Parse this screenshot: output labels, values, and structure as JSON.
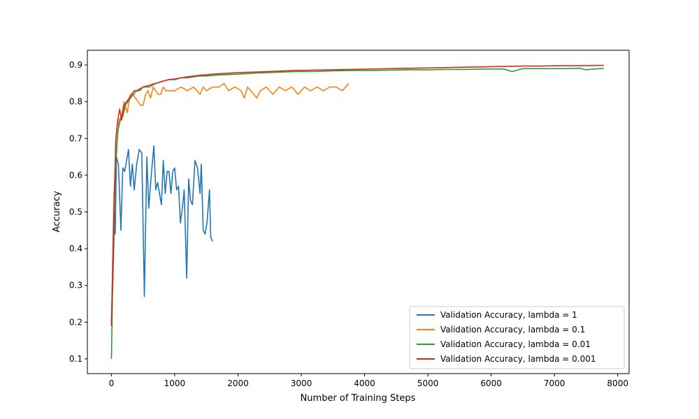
{
  "chart_data": {
    "type": "line",
    "title": "",
    "xlabel": "Number of Training Steps",
    "ylabel": "Accuracy",
    "xlim": [
      -380,
      8180
    ],
    "ylim": [
      0.06,
      0.94
    ],
    "xticks": [
      0,
      1000,
      2000,
      3000,
      4000,
      5000,
      6000,
      7000,
      8000
    ],
    "yticks": [
      0.1,
      0.2,
      0.3,
      0.4,
      0.5,
      0.6,
      0.7,
      0.8,
      0.9
    ],
    "grid": false,
    "legend_position": "lower-right",
    "series": [
      {
        "name": "Validation Accuracy, lambda = 1",
        "color": "#1f77b4",
        "points": [
          [
            0,
            0.19
          ],
          [
            30,
            0.35
          ],
          [
            50,
            0.5
          ],
          [
            60,
            0.44
          ],
          [
            80,
            0.65
          ],
          [
            110,
            0.63
          ],
          [
            150,
            0.45
          ],
          [
            180,
            0.62
          ],
          [
            210,
            0.61
          ],
          [
            240,
            0.64
          ],
          [
            270,
            0.67
          ],
          [
            300,
            0.57
          ],
          [
            330,
            0.63
          ],
          [
            360,
            0.56
          ],
          [
            400,
            0.63
          ],
          [
            440,
            0.67
          ],
          [
            480,
            0.66
          ],
          [
            520,
            0.27
          ],
          [
            560,
            0.65
          ],
          [
            590,
            0.51
          ],
          [
            630,
            0.6
          ],
          [
            670,
            0.68
          ],
          [
            700,
            0.56
          ],
          [
            730,
            0.58
          ],
          [
            760,
            0.55
          ],
          [
            790,
            0.52
          ],
          [
            820,
            0.64
          ],
          [
            850,
            0.55
          ],
          [
            880,
            0.61
          ],
          [
            910,
            0.61
          ],
          [
            940,
            0.55
          ],
          [
            970,
            0.61
          ],
          [
            1000,
            0.62
          ],
          [
            1030,
            0.56
          ],
          [
            1060,
            0.57
          ],
          [
            1090,
            0.47
          ],
          [
            1120,
            0.51
          ],
          [
            1150,
            0.56
          ],
          [
            1190,
            0.32
          ],
          [
            1220,
            0.59
          ],
          [
            1250,
            0.53
          ],
          [
            1280,
            0.52
          ],
          [
            1320,
            0.64
          ],
          [
            1360,
            0.62
          ],
          [
            1400,
            0.55
          ],
          [
            1420,
            0.63
          ],
          [
            1450,
            0.45
          ],
          [
            1480,
            0.44
          ],
          [
            1510,
            0.47
          ],
          [
            1550,
            0.56
          ],
          [
            1570,
            0.43
          ],
          [
            1600,
            0.42
          ]
        ]
      },
      {
        "name": "Validation Accuracy, lambda = 0.1",
        "color": "#ff7f0e",
        "points": [
          [
            0,
            0.19
          ],
          [
            40,
            0.55
          ],
          [
            80,
            0.67
          ],
          [
            120,
            0.75
          ],
          [
            160,
            0.76
          ],
          [
            200,
            0.8
          ],
          [
            250,
            0.77
          ],
          [
            300,
            0.82
          ],
          [
            340,
            0.82
          ],
          [
            380,
            0.81
          ],
          [
            420,
            0.8
          ],
          [
            460,
            0.79
          ],
          [
            500,
            0.79
          ],
          [
            540,
            0.82
          ],
          [
            580,
            0.83
          ],
          [
            620,
            0.81
          ],
          [
            660,
            0.84
          ],
          [
            700,
            0.83
          ],
          [
            740,
            0.82
          ],
          [
            780,
            0.82
          ],
          [
            820,
            0.84
          ],
          [
            860,
            0.83
          ],
          [
            900,
            0.83
          ],
          [
            1000,
            0.83
          ],
          [
            1100,
            0.84
          ],
          [
            1200,
            0.83
          ],
          [
            1300,
            0.84
          ],
          [
            1350,
            0.83
          ],
          [
            1400,
            0.82
          ],
          [
            1450,
            0.84
          ],
          [
            1500,
            0.83
          ],
          [
            1600,
            0.84
          ],
          [
            1700,
            0.84
          ],
          [
            1780,
            0.85
          ],
          [
            1850,
            0.83
          ],
          [
            1950,
            0.84
          ],
          [
            2050,
            0.83
          ],
          [
            2100,
            0.81
          ],
          [
            2150,
            0.84
          ],
          [
            2200,
            0.83
          ],
          [
            2300,
            0.81
          ],
          [
            2350,
            0.83
          ],
          [
            2450,
            0.84
          ],
          [
            2550,
            0.82
          ],
          [
            2650,
            0.84
          ],
          [
            2750,
            0.83
          ],
          [
            2850,
            0.84
          ],
          [
            2950,
            0.82
          ],
          [
            3050,
            0.84
          ],
          [
            3150,
            0.83
          ],
          [
            3250,
            0.84
          ],
          [
            3350,
            0.83
          ],
          [
            3450,
            0.84
          ],
          [
            3550,
            0.84
          ],
          [
            3650,
            0.83
          ],
          [
            3750,
            0.85
          ]
        ]
      },
      {
        "name": "Validation Accuracy, lambda = 0.01",
        "color": "#2ca02c",
        "points": [
          [
            0,
            0.1
          ],
          [
            30,
            0.4
          ],
          [
            60,
            0.6
          ],
          [
            100,
            0.72
          ],
          [
            140,
            0.75
          ],
          [
            180,
            0.76
          ],
          [
            220,
            0.79
          ],
          [
            260,
            0.8
          ],
          [
            300,
            0.81
          ],
          [
            350,
            0.82
          ],
          [
            400,
            0.83
          ],
          [
            450,
            0.83
          ],
          [
            500,
            0.84
          ],
          [
            600,
            0.84
          ],
          [
            700,
            0.85
          ],
          [
            800,
            0.855
          ],
          [
            900,
            0.86
          ],
          [
            1000,
            0.86
          ],
          [
            1100,
            0.865
          ],
          [
            1200,
            0.865
          ],
          [
            1300,
            0.868
          ],
          [
            1400,
            0.87
          ],
          [
            1500,
            0.87
          ],
          [
            1700,
            0.873
          ],
          [
            2000,
            0.875
          ],
          [
            2300,
            0.878
          ],
          [
            2600,
            0.88
          ],
          [
            2900,
            0.882
          ],
          [
            3200,
            0.882
          ],
          [
            3500,
            0.884
          ],
          [
            3800,
            0.885
          ],
          [
            4100,
            0.885
          ],
          [
            4400,
            0.886
          ],
          [
            4700,
            0.887
          ],
          [
            5000,
            0.887
          ],
          [
            5300,
            0.888
          ],
          [
            5600,
            0.888
          ],
          [
            5900,
            0.889
          ],
          [
            6200,
            0.889
          ],
          [
            6330,
            0.882
          ],
          [
            6500,
            0.89
          ],
          [
            6800,
            0.89
          ],
          [
            7100,
            0.89
          ],
          [
            7400,
            0.891
          ],
          [
            7500,
            0.887
          ],
          [
            7780,
            0.891
          ]
        ]
      },
      {
        "name": "Validation Accuracy, lambda = 0.001",
        "color": "#d62728",
        "points": [
          [
            0,
            0.19
          ],
          [
            40,
            0.5
          ],
          [
            70,
            0.7
          ],
          [
            100,
            0.75
          ],
          [
            130,
            0.78
          ],
          [
            160,
            0.75
          ],
          [
            200,
            0.79
          ],
          [
            240,
            0.8
          ],
          [
            280,
            0.81
          ],
          [
            320,
            0.82
          ],
          [
            360,
            0.83
          ],
          [
            400,
            0.83
          ],
          [
            450,
            0.835
          ],
          [
            500,
            0.84
          ],
          [
            600,
            0.845
          ],
          [
            700,
            0.85
          ],
          [
            800,
            0.855
          ],
          [
            900,
            0.86
          ],
          [
            1000,
            0.862
          ],
          [
            1100,
            0.865
          ],
          [
            1200,
            0.868
          ],
          [
            1300,
            0.87
          ],
          [
            1400,
            0.872
          ],
          [
            1600,
            0.875
          ],
          [
            1800,
            0.877
          ],
          [
            2000,
            0.879
          ],
          [
            2300,
            0.881
          ],
          [
            2600,
            0.883
          ],
          [
            2900,
            0.885
          ],
          [
            3200,
            0.886
          ],
          [
            3500,
            0.887
          ],
          [
            3800,
            0.888
          ],
          [
            4100,
            0.889
          ],
          [
            4400,
            0.89
          ],
          [
            4700,
            0.891
          ],
          [
            5000,
            0.892
          ],
          [
            5300,
            0.893
          ],
          [
            5600,
            0.894
          ],
          [
            5900,
            0.895
          ],
          [
            6200,
            0.896
          ],
          [
            6500,
            0.897
          ],
          [
            6800,
            0.897
          ],
          [
            7100,
            0.898
          ],
          [
            7400,
            0.898
          ],
          [
            7780,
            0.899
          ]
        ]
      }
    ]
  }
}
